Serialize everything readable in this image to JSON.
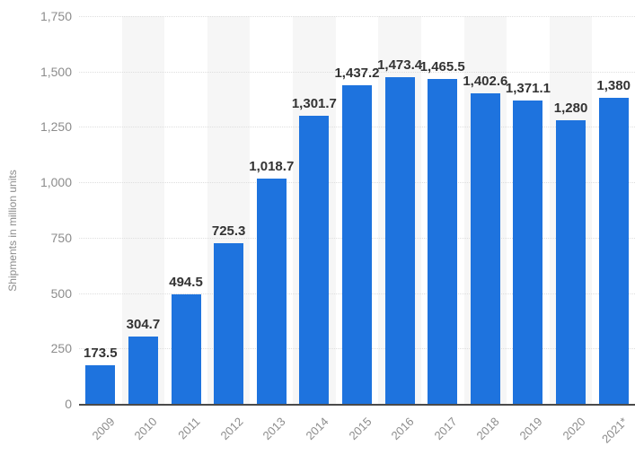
{
  "chart_data": {
    "type": "bar",
    "title": "",
    "xlabel": "",
    "ylabel": "Shipments in million units",
    "categories": [
      "2009",
      "2010",
      "2011",
      "2012",
      "2013",
      "2014",
      "2015",
      "2016",
      "2017",
      "2018",
      "2019",
      "2020",
      "2021*"
    ],
    "values": [
      173.5,
      304.7,
      494.5,
      725.3,
      1018.7,
      1301.7,
      1437.2,
      1473.4,
      1465.5,
      1402.6,
      1371.1,
      1280,
      1380
    ],
    "value_labels": [
      "173.5",
      "304.7",
      "494.5",
      "725.3",
      "1,018.7",
      "1,301.7",
      "1,437.2",
      "1,473.4",
      "1,465.5",
      "1,402.6",
      "1,371.1",
      "1,280",
      "1,380"
    ],
    "ylim": [
      0,
      1750
    ],
    "ytick_interval": 250,
    "ytick_labels": [
      "0",
      "250",
      "500",
      "750",
      "1,000",
      "1,250",
      "1,500",
      "1,750"
    ],
    "grid": "horizontal dotted lines, one per y tick",
    "legend": "none",
    "background_stripes": "alternating vertical bands behind every second category starting with 2010",
    "colors": {
      "bar": "#1E73DE",
      "value_label_text": "#333333",
      "axis_text": "#8C8C8C",
      "gridline": "#DEDEDE",
      "baseline": "#4A4A4A",
      "stripe": "#F6F6F6",
      "background": "#FFFFFF"
    }
  }
}
